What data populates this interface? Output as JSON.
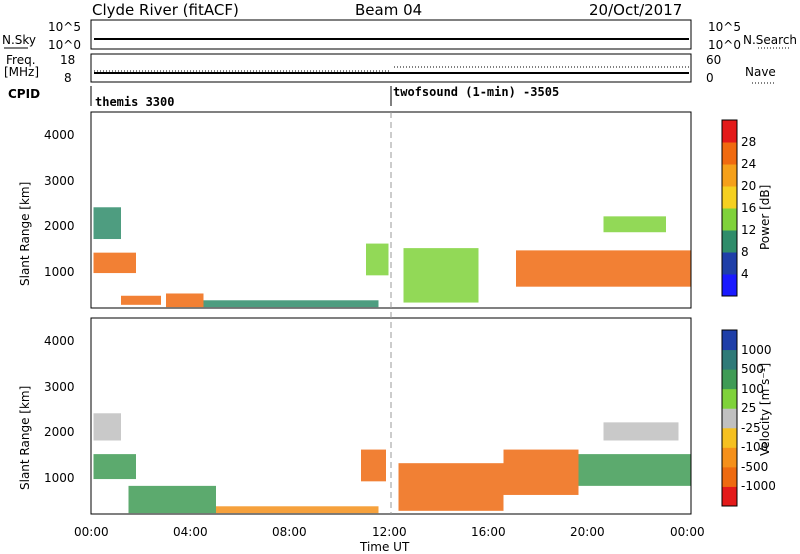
{
  "header": {
    "title": "Clyde River (fitACF)",
    "beam": "Beam 04",
    "date": "20/Oct/2017"
  },
  "status": {
    "nsky_label": "N.Sky",
    "nsearch_label": "N.Search",
    "left_top": "10^5",
    "left_bottom": "10^0",
    "right_top": "10^5",
    "right_bottom": "10^0",
    "freq_label": "Freq.",
    "freq_unit": "[MHz]",
    "freq_top": "18",
    "freq_bottom": "8",
    "nave_label": "Nave",
    "nave_top": "60",
    "nave_bottom": "0",
    "cpid_label": "CPID",
    "cpid_1": "themis 3300",
    "cpid_2": "twofsound (1-min) -3505"
  },
  "axes": {
    "xlabel": "Time UT",
    "xticks": [
      "00:00",
      "04:00",
      "08:00",
      "12:00",
      "16:00",
      "20:00",
      "00:00"
    ],
    "ylabel": "Slant Range [km]",
    "yticks": [
      "1000",
      "2000",
      "3000",
      "4000"
    ]
  },
  "power_bar": {
    "label": "Power [dB]",
    "ticks": [
      "4",
      "8",
      "12",
      "16",
      "20",
      "24",
      "28"
    ],
    "colors": [
      "#1a1aff",
      "#1f3fa8",
      "#2f8c6a",
      "#7fd23a",
      "#f5d020",
      "#f5a01a",
      "#f06a10",
      "#e41a1a"
    ]
  },
  "velocity_bar": {
    "label": "Velocity [m s⁻¹]",
    "ticks": [
      "1000",
      "500",
      "100",
      "25",
      "-25",
      "-100",
      "-500",
      "-1000"
    ],
    "colors": [
      "#1f3fa8",
      "#2f7a78",
      "#3f9b55",
      "#7fd23a",
      "#c0c0c0",
      "#f5c020",
      "#f5901a",
      "#ee6a10",
      "#e41a1a"
    ]
  },
  "chart_data": [
    {
      "type": "heatmap",
      "title": "Power",
      "xlabel": "Time UT",
      "ylabel": "Slant Range [km]",
      "xlim": [
        0,
        24
      ],
      "ylim": [
        180,
        4500
      ],
      "zlim": [
        0,
        30
      ],
      "colorbar_label": "Power [dB]",
      "blobs": [
        {
          "t": [
            0.1,
            1.8
          ],
          "r": [
            950,
            1400
          ],
          "v": 26
        },
        {
          "t": [
            0.1,
            1.2
          ],
          "r": [
            1700,
            2400
          ],
          "v": 10
        },
        {
          "t": [
            1.2,
            2.8
          ],
          "r": [
            250,
            450
          ],
          "v": 25
        },
        {
          "t": [
            3.0,
            4.5
          ],
          "r": [
            200,
            500
          ],
          "v": 24
        },
        {
          "t": [
            4.5,
            11.5
          ],
          "r": [
            200,
            350
          ],
          "v": 8
        },
        {
          "t": [
            11.0,
            11.9
          ],
          "r": [
            900,
            1600
          ],
          "v": 14
        },
        {
          "t": [
            12.5,
            15.5
          ],
          "r": [
            300,
            1500
          ],
          "v": 12
        },
        {
          "t": [
            17.0,
            24.0
          ],
          "r": [
            650,
            1450
          ],
          "v": 27
        },
        {
          "t": [
            20.5,
            23.0
          ],
          "r": [
            1850,
            2200
          ],
          "v": 12
        }
      ]
    },
    {
      "type": "heatmap",
      "title": "Velocity",
      "xlabel": "Time UT",
      "ylabel": "Slant Range [km]",
      "xlim": [
        0,
        24
      ],
      "ylim": [
        180,
        4500
      ],
      "zlim": [
        -1000,
        1000
      ],
      "colorbar_label": "Velocity [m s⁻¹]",
      "blobs": [
        {
          "t": [
            0.1,
            1.8
          ],
          "r": [
            950,
            1500
          ],
          "v": 150
        },
        {
          "t": [
            0.1,
            1.2
          ],
          "r": [
            1800,
            2400
          ],
          "v": 0
        },
        {
          "t": [
            1.5,
            5.0
          ],
          "r": [
            200,
            800
          ],
          "v": 80
        },
        {
          "t": [
            5.0,
            11.5
          ],
          "r": [
            200,
            350
          ],
          "v": -60
        },
        {
          "t": [
            10.8,
            11.8
          ],
          "r": [
            900,
            1600
          ],
          "v": -300
        },
        {
          "t": [
            12.3,
            16.5
          ],
          "r": [
            250,
            1300
          ],
          "v": -300
        },
        {
          "t": [
            16.5,
            19.5
          ],
          "r": [
            600,
            1600
          ],
          "v": -600
        },
        {
          "t": [
            19.5,
            24.0
          ],
          "r": [
            800,
            1500
          ],
          "v": 120
        },
        {
          "t": [
            20.5,
            23.5
          ],
          "r": [
            1800,
            2200
          ],
          "v": 0
        }
      ]
    }
  ]
}
